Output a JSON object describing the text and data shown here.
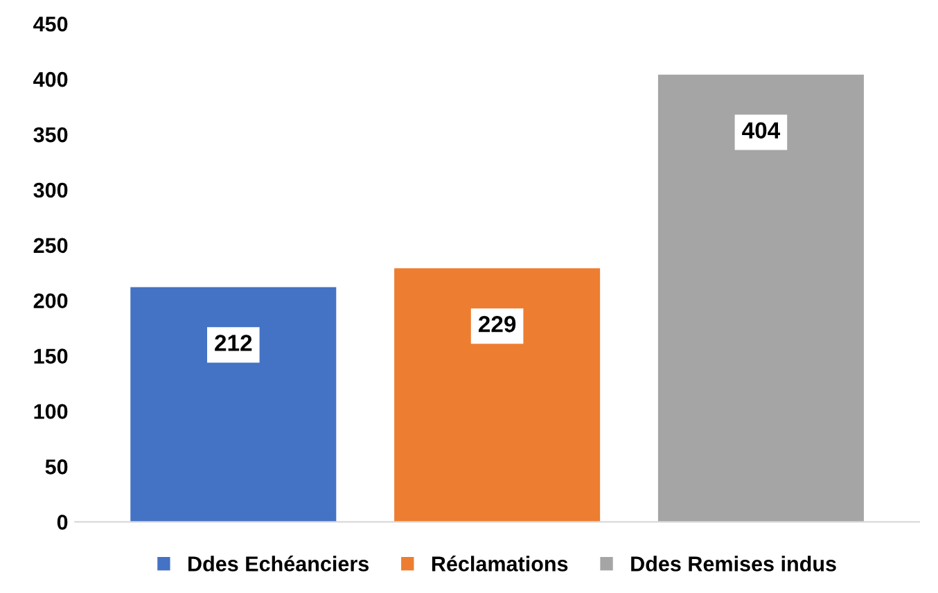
{
  "chart_data": {
    "type": "bar",
    "categories": [
      null,
      null,
      null
    ],
    "series": [
      {
        "name": "Ddes Echéanciers",
        "color": "#4472c4",
        "values": [
          212,
          null,
          null
        ]
      },
      {
        "name": "Réclamations",
        "color": "#ed7d31",
        "values": [
          null,
          229,
          null
        ]
      },
      {
        "name": "Ddes Remises indus",
        "color": "#a5a5a5",
        "values": [
          null,
          null,
          404
        ]
      }
    ],
    "ylim": [
      0,
      450
    ],
    "yticks": [
      0,
      50,
      100,
      150,
      200,
      250,
      300,
      350,
      400,
      450
    ],
    "grid": false,
    "legend": "bottom",
    "data_labels": true
  }
}
